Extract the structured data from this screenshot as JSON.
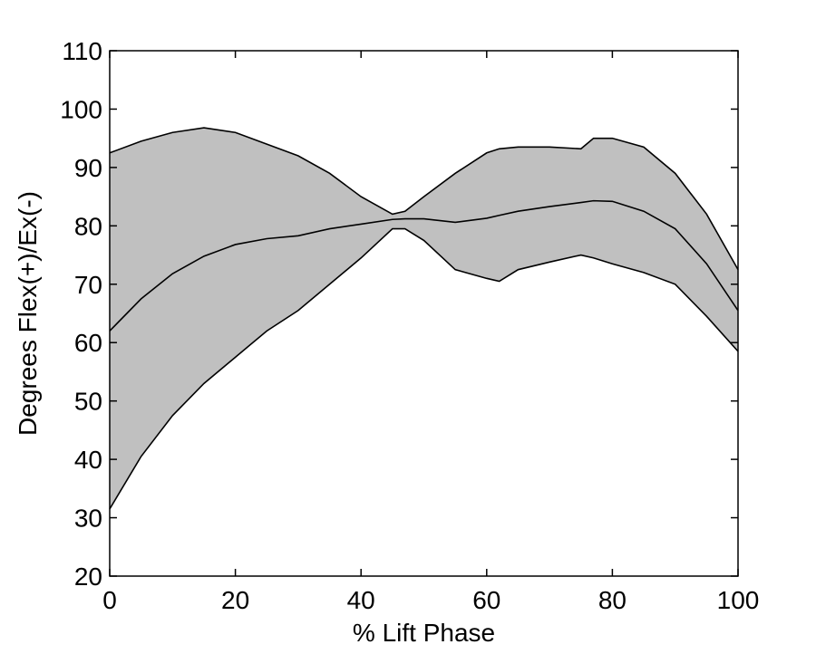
{
  "chart_data": {
    "type": "area",
    "title": "",
    "xlabel": "% Lift Phase",
    "ylabel": "Degrees Flex(+)/Ex(-)",
    "xlim": [
      0,
      100
    ],
    "ylim": [
      20,
      110
    ],
    "x_ticks": [
      0,
      20,
      40,
      60,
      80,
      100
    ],
    "y_ticks": [
      20,
      30,
      40,
      50,
      60,
      70,
      80,
      90,
      100,
      110
    ],
    "grid": false,
    "legend": "none",
    "colors": {
      "band_fill": "#c0c0c0",
      "line": "#000000"
    },
    "x": [
      0,
      5,
      10,
      15,
      20,
      25,
      30,
      35,
      40,
      45,
      47,
      50,
      55,
      60,
      62,
      65,
      70,
      75,
      77,
      80,
      85,
      90,
      95,
      100
    ],
    "series": [
      {
        "role": "upper",
        "values": [
          92.5,
          94.5,
          96.0,
          96.8,
          96.0,
          94.0,
          92.0,
          89.0,
          85.0,
          82.0,
          82.5,
          85.0,
          89.0,
          92.5,
          93.2,
          93.5,
          93.5,
          93.2,
          95.0,
          95.0,
          93.5,
          89.0,
          82.0,
          72.5
        ]
      },
      {
        "role": "mean",
        "values": [
          62.0,
          67.5,
          71.8,
          74.8,
          76.8,
          77.8,
          78.3,
          79.5,
          80.3,
          81.1,
          81.2,
          81.2,
          80.6,
          81.3,
          81.8,
          82.5,
          83.3,
          84.0,
          84.3,
          84.2,
          82.5,
          79.5,
          73.5,
          65.5
        ]
      },
      {
        "role": "lower",
        "values": [
          31.5,
          40.5,
          47.5,
          53.0,
          57.5,
          62.0,
          65.5,
          70.0,
          74.5,
          79.5,
          79.5,
          77.5,
          72.5,
          71.0,
          70.5,
          72.5,
          73.8,
          75.0,
          74.5,
          73.5,
          72.0,
          70.0,
          64.5,
          58.5
        ]
      }
    ]
  }
}
